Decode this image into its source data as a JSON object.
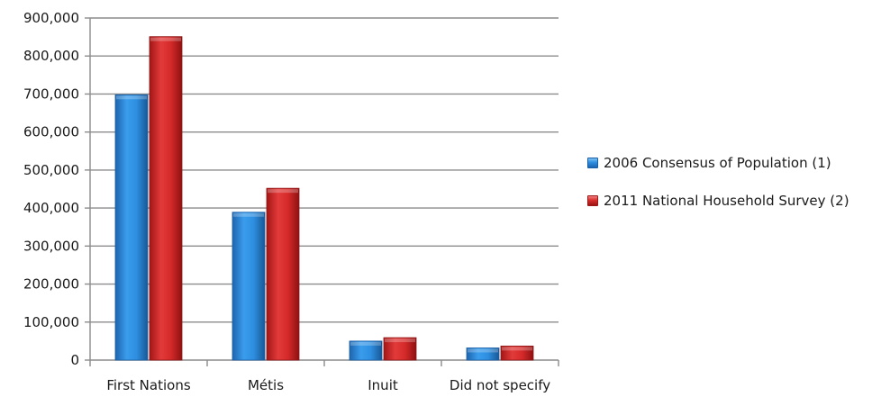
{
  "chart_data": {
    "type": "bar",
    "title": "",
    "xlabel": "",
    "ylabel": "",
    "categories": [
      "First Nations",
      "Métis",
      "Inuit",
      "Did not specify"
    ],
    "series": [
      {
        "name": "2006 Consensus of Population (1)",
        "values": [
          698000,
          389000,
          50000,
          32000
        ],
        "color": "#2e8fe0"
      },
      {
        "name": "2011 National Household Survey (2)",
        "values": [
          851000,
          452000,
          59000,
          37000
        ],
        "color": "#d62a2a"
      }
    ],
    "ylim": [
      0,
      900000
    ],
    "yticks": [
      0,
      100000,
      200000,
      300000,
      400000,
      500000,
      600000,
      700000,
      800000,
      900000
    ],
    "ytick_labels": [
      "0",
      "100,000",
      "200,000",
      "300,000",
      "400,000",
      "500,000",
      "600,000",
      "700,000",
      "800,000",
      "900,000"
    ],
    "grid": true,
    "legend_position": "right"
  }
}
